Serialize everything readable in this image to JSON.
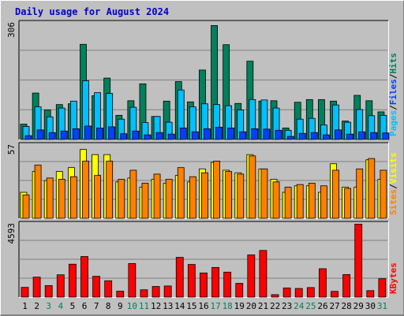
{
  "chart_data": {
    "type": "bar",
    "title": "Daily usage for August 2024",
    "colors": {
      "hits": "#00805c",
      "files": "#00c0ff",
      "pages": "#0040ff",
      "visits": "#ffff00",
      "sites": "#ff8000",
      "kbytes": "#ff0000",
      "weekend_day_label": "#00805c",
      "weekday_label": "#000000"
    },
    "categories": [
      "1",
      "2",
      "3",
      "4",
      "5",
      "6",
      "7",
      "8",
      "9",
      "10",
      "11",
      "12",
      "13",
      "14",
      "15",
      "16",
      "17",
      "18",
      "19",
      "20",
      "21",
      "22",
      "23",
      "24",
      "25",
      "26",
      "27",
      "28",
      "29",
      "30",
      "31"
    ],
    "weekend_days": [
      "3",
      "4",
      "10",
      "11",
      "17",
      "18",
      "24",
      "25",
      "31"
    ],
    "panels": [
      {
        "id": "hits-files-pages",
        "ymax_label": "306",
        "ylim": [
          0,
          306
        ],
        "right_label": [
          "Pages",
          "/",
          "Files",
          "/",
          "Hits"
        ],
        "right_label_colors": [
          "#00c0ff",
          "#000000",
          "#0040ff",
          "#000000",
          "#00805c"
        ],
        "series": [
          {
            "name": "Hits",
            "color": "#00805c",
            "values": [
              40,
              121,
              77,
              91,
              93,
              248,
              114,
              160,
              63,
              101,
              145,
              60,
              100,
              151,
              98,
              181,
              297,
              247,
              94,
              204,
              100,
              101,
              30,
              97,
              104,
              104,
              100,
              48,
              115,
              101,
              72
            ]
          },
          {
            "name": "Files",
            "color": "#00c0ff",
            "values": [
              34,
              85,
              59,
              82,
              100,
              153,
              122,
              120,
              53,
              84,
              44,
              60,
              45,
              129,
              85,
              93,
              91,
              88,
              77,
              104,
              103,
              82,
              24,
              53,
              55,
              38,
              90,
              45,
              78,
              62,
              63
            ]
          },
          {
            "name": "Pages",
            "color": "#0040ff",
            "values": [
              10,
              25,
              18,
              22,
              28,
              35,
              30,
              33,
              15,
              22,
              12,
              18,
              14,
              30,
              20,
              28,
              32,
              30,
              20,
              28,
              27,
              24,
              8,
              16,
              18,
              12,
              25,
              14,
              20,
              18,
              17
            ]
          }
        ]
      },
      {
        "id": "visits-sites",
        "ymax_label": "57",
        "ylim": [
          0,
          57
        ],
        "right_label": [
          "Sites",
          "/",
          "Visits"
        ],
        "right_label_colors": [
          "#ff8000",
          "#000000",
          "#ffff00"
        ],
        "series": [
          {
            "name": "Visits",
            "color": "#ffff00",
            "values": [
              20,
              36,
              29,
              36,
              39,
              53,
              49,
              49,
              28,
              31,
              24,
              30,
              27,
              33,
              28,
              38,
              43,
              37,
              35,
              49,
              38,
              30,
              20,
              25,
              25,
              20,
              42,
              24,
              24,
              45,
              30
            ]
          },
          {
            "name": "Sites",
            "color": "#ff8000",
            "values": [
              18,
              41,
              31,
              30,
              32,
              44,
              33,
              44,
              30,
              37,
              27,
              34,
              30,
              39,
              32,
              35,
              44,
              36,
              34,
              48,
              38,
              28,
              24,
              26,
              27,
              25,
              37,
              23,
              38,
              46,
              37
            ]
          }
        ]
      },
      {
        "id": "kbytes",
        "ymax_label": "4593",
        "ylim": [
          0,
          4593
        ],
        "right_label": [
          "KBytes"
        ],
        "right_label_colors": [
          "#ff0000"
        ],
        "series": [
          {
            "name": "KBytes",
            "color": "#ff0000",
            "values": [
              603,
              1237,
              715,
              1382,
              2041,
              2515,
              1289,
              1012,
              366,
              2080,
              454,
              659,
              689,
              2464,
              2023,
              1496,
              1836,
              1548,
              853,
              2619,
              2891,
              151,
              568,
              535,
              591,
              1759,
              354,
              1398,
              4522,
              400,
              1138
            ]
          }
        ]
      }
    ]
  }
}
